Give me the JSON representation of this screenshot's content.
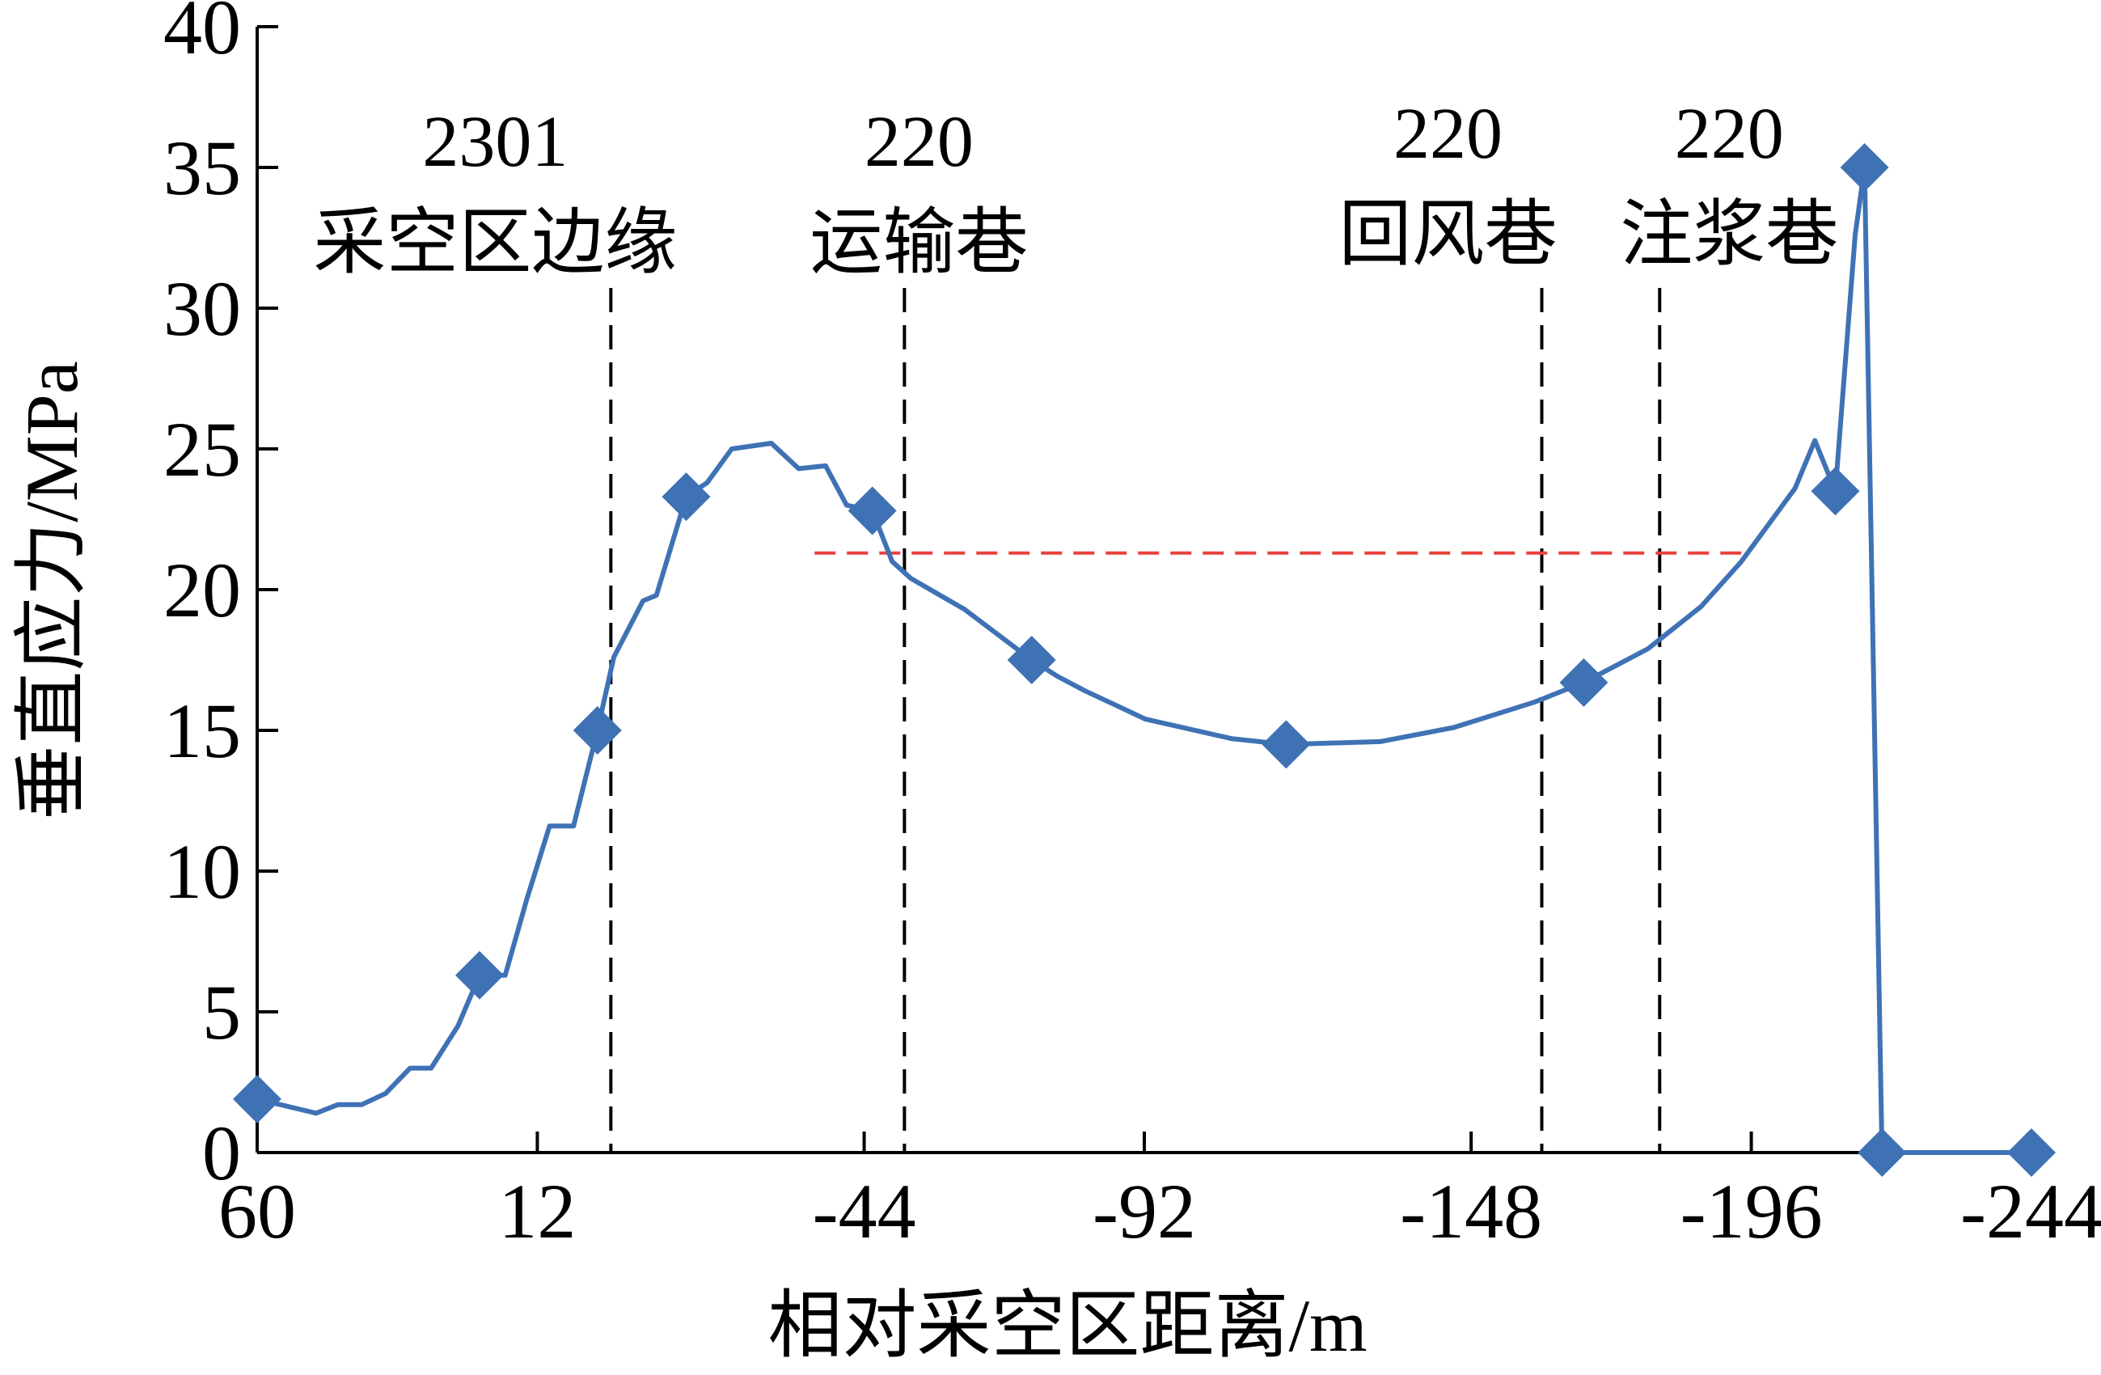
{
  "chart_data": {
    "type": "line",
    "xlabel": "相对采空区距离/m",
    "ylabel": "垂直应力/MPa",
    "xlim": [
      60,
      -244
    ],
    "ylim": [
      0,
      40
    ],
    "xticks": [
      60,
      12,
      -44,
      -92,
      -148,
      -196,
      -244
    ],
    "yticks": [
      0,
      5,
      10,
      15,
      20,
      25,
      30,
      35,
      40
    ],
    "series": [
      {
        "color": "#3f72b5",
        "x": [
          60,
          49.9,
          46.2,
          42.1,
          38,
          33.8,
          30.2,
          25.6,
          21.9,
          17.5,
          13.8,
          9.9,
          5.8,
          1.7,
          -1.1,
          -6.1,
          -8.4,
          -13.5,
          -17.1,
          -21.3,
          -28.1,
          -32.8,
          -37.4,
          -41,
          -45.4,
          -48.8,
          -52,
          -61.2,
          -72.7,
          -77.3,
          -81.9,
          -92.2,
          -107.1,
          -116.3,
          -132.4,
          -145,
          -158.8,
          -167.3,
          -178.3,
          -187.4,
          -194.3,
          -203.5,
          -206.9,
          -210.4,
          -213.8,
          -215.4,
          -218.4,
          -244
        ],
        "values": [
          1.9,
          1.4,
          1.7,
          1.7,
          2.1,
          3.0,
          3.0,
          4.5,
          6.3,
          6.3,
          9.0,
          11.6,
          11.6,
          15.0,
          17.6,
          19.6,
          19.8,
          23.3,
          23.8,
          25.0,
          25.2,
          24.3,
          24.4,
          23.0,
          22.8,
          21.0,
          20.4,
          19.3,
          17.5,
          16.9,
          16.4,
          15.4,
          14.7,
          14.5,
          14.6,
          15.1,
          16.0,
          16.7,
          17.9,
          19.4,
          21.0,
          23.6,
          25.3,
          23.5,
          32.6,
          35.0,
          0,
          0
        ]
      }
    ],
    "markers": {
      "color": "#3f72b5",
      "x": [
        60,
        21.9,
        1.7,
        -13.5,
        -45.4,
        -72.7,
        -116.3,
        -167.3,
        -210.4,
        -215.4,
        -218.4,
        -244
      ],
      "values": [
        1.9,
        6.3,
        15.0,
        23.3,
        22.8,
        17.5,
        14.5,
        16.7,
        23.5,
        35.0,
        0,
        0
      ]
    },
    "threshold": {
      "color": "#e8423f",
      "value": 21.3,
      "x": [
        -35.5,
        -194.5
      ]
    },
    "annotations": [
      {
        "x": -0.6,
        "lines": [
          "2301",
          "采空区边缘"
        ]
      },
      {
        "x": -50.9,
        "lines": [
          "220",
          "运输巷"
        ]
      },
      {
        "x": -160.1,
        "lines": [
          "220",
          "回风巷"
        ]
      },
      {
        "x": -180.3,
        "lines": [
          "220",
          "注浆巷"
        ]
      }
    ]
  }
}
